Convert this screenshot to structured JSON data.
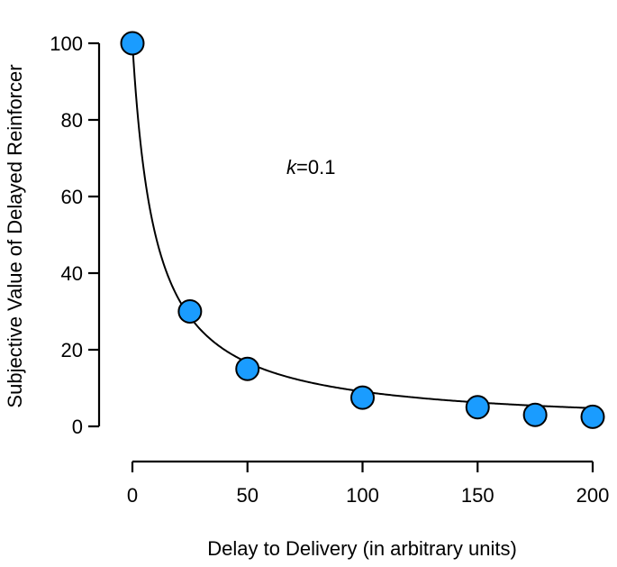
{
  "chart_data": {
    "type": "scatter",
    "xlabel": "Delay to Delivery (in arbitrary units)",
    "ylabel": "Subjective Value of Delayed Reinforcer",
    "xlim": [
      0,
      200
    ],
    "ylim": [
      0,
      100
    ],
    "xticks": [
      0,
      50,
      100,
      150,
      200
    ],
    "yticks": [
      0,
      20,
      40,
      60,
      80,
      100
    ],
    "grid": false,
    "legend": "none",
    "series": [
      {
        "x": [
          0,
          25,
          50,
          100,
          150,
          175,
          200
        ],
        "y": [
          100,
          30,
          15,
          7.5,
          5,
          3,
          2.5
        ],
        "marker_color": "#1a9cff"
      }
    ],
    "fit_curve": {
      "model": "hyperbolic",
      "k": 0.1,
      "A": 100
    },
    "annotation": {
      "italic": "k",
      "rest": "=0.1"
    }
  }
}
